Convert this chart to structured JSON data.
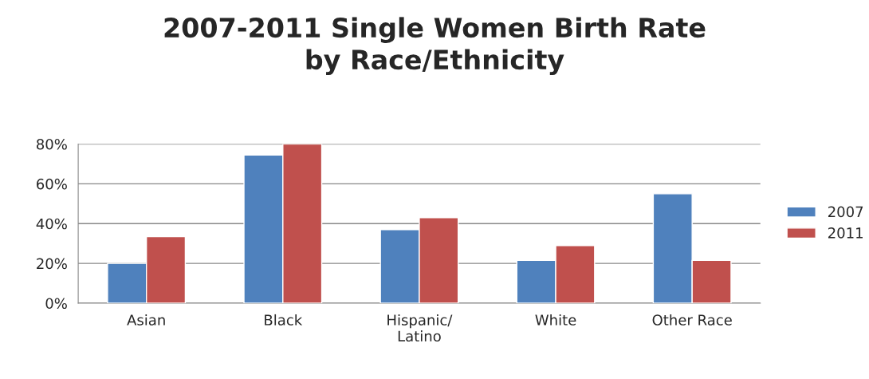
{
  "chart_data": {
    "type": "bar",
    "title": "2007-2011 Single Women Birth Rate\nby Race/Ethnicity",
    "categories": [
      "Asian",
      "Black",
      "Hispanic/\nLatino",
      "White",
      "Other Race"
    ],
    "series": [
      {
        "name": "2007",
        "color": "#4f81bd",
        "values": [
          20,
          74.5,
          37,
          21.5,
          55
        ]
      },
      {
        "name": "2011",
        "color": "#c0504d",
        "values": [
          33.5,
          80,
          43,
          29,
          21.5
        ]
      }
    ],
    "ylim": [
      0,
      80
    ],
    "yticks": [
      {
        "value": 0,
        "label": "0%"
      },
      {
        "value": 20,
        "label": "20%"
      },
      {
        "value": 40,
        "label": "40%"
      },
      {
        "value": 60,
        "label": "60%"
      },
      {
        "value": 80,
        "label": "80%"
      }
    ],
    "grid": "y",
    "legend": "right"
  }
}
